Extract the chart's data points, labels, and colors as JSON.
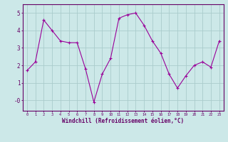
{
  "x": [
    0,
    1,
    2,
    3,
    4,
    5,
    6,
    7,
    8,
    9,
    10,
    11,
    12,
    13,
    14,
    15,
    16,
    17,
    18,
    19,
    20,
    21,
    22,
    23
  ],
  "y": [
    1.7,
    2.2,
    4.6,
    4.0,
    3.4,
    3.3,
    3.3,
    1.8,
    -0.1,
    1.5,
    2.4,
    4.7,
    4.9,
    5.0,
    4.3,
    3.4,
    2.7,
    1.5,
    0.7,
    1.4,
    2.0,
    2.2,
    1.9,
    3.4
  ],
  "line_color": "#990099",
  "marker": "+",
  "marker_size": 3,
  "bg_color": "#cce8e8",
  "grid_color": "#aacccc",
  "axis_color": "#660066",
  "xlabel": "Windchill (Refroidissement éolien,°C)",
  "xlabel_color": "#660066",
  "ylim": [
    -0.6,
    5.5
  ],
  "xlim": [
    -0.5,
    23.5
  ]
}
